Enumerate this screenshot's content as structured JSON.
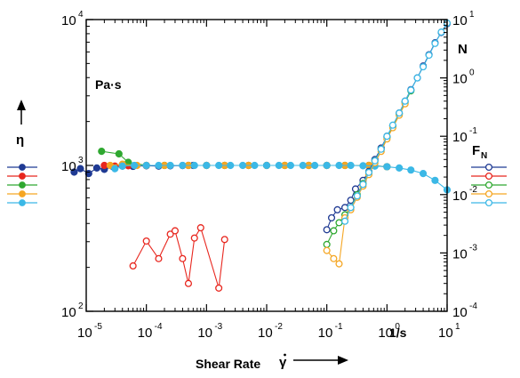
{
  "chart_data": {
    "type": "line",
    "x_scale": "log",
    "y_left_scale": "log",
    "y_right_scale": "log",
    "xlim": [
      1e-05,
      10
    ],
    "ylim_left": [
      100,
      10000
    ],
    "ylim_right": [
      0.0001,
      10
    ],
    "x_ticks": [
      "10^-5",
      "10^-4",
      "10^-3",
      "10^-2",
      "10^-1",
      "10^0",
      "10^1"
    ],
    "y_left_ticks": [
      "10^2",
      "10^3",
      "10^4"
    ],
    "y_right_ticks": [
      "10^-4",
      "10^-3",
      "10^-2",
      "10^-1",
      "10^0",
      "10^1"
    ],
    "xlabel": "Shear Rate γ̇",
    "x_unit": "1/s",
    "ylabel_left": "η",
    "ylabel_left_unit": "Pa·s",
    "ylabel_right": "N",
    "legend_left_title": "η",
    "legend_right_title": "F_N",
    "colors": [
      "#1f3a93",
      "#e8261e",
      "#2fa830",
      "#f5a623",
      "#3bb8e6"
    ],
    "eta_series": [
      {
        "color": "#1f3a93",
        "points": [
          [
            6.3e-06,
            900
          ],
          [
            8e-06,
            950
          ],
          [
            1.1e-05,
            880
          ],
          [
            1.5e-05,
            960
          ],
          [
            2e-05,
            940
          ],
          [
            2.8e-05,
            980
          ],
          [
            4e-05,
            990
          ],
          [
            6e-05,
            985
          ],
          [
            0.0001,
            995
          ],
          [
            0.00016,
            990
          ],
          [
            0.00025,
            995
          ],
          [
            0.0004,
            998
          ],
          [
            0.0006,
            1000
          ]
        ]
      },
      {
        "color": "#e8261e",
        "points": [
          [
            2e-05,
            1000
          ],
          [
            3e-05,
            990
          ],
          [
            5e-05,
            995
          ],
          [
            0.0001,
            1000
          ],
          [
            0.0002,
            1000
          ],
          [
            0.0005,
            1000
          ],
          [
            0.001,
            1000
          ],
          [
            0.002,
            1000
          ],
          [
            0.005,
            1000
          ],
          [
            0.01,
            1000
          ],
          [
            0.02,
            1000
          ],
          [
            0.05,
            1000
          ],
          [
            0.1,
            1000
          ],
          [
            0.2,
            1000
          ],
          [
            0.5,
            1000
          ],
          [
            1,
            980
          ]
        ]
      },
      {
        "color": "#2fa830",
        "points": [
          [
            1.8e-05,
            1250
          ],
          [
            3.5e-05,
            1200
          ],
          [
            5e-05,
            1050
          ],
          [
            0.0001,
            1000
          ],
          [
            0.0002,
            1000
          ],
          [
            0.0005,
            1000
          ],
          [
            0.001,
            1000
          ],
          [
            0.002,
            1000
          ],
          [
            0.005,
            1000
          ],
          [
            0.01,
            1000
          ],
          [
            0.02,
            1000
          ],
          [
            0.05,
            1000
          ],
          [
            0.1,
            1000
          ],
          [
            0.2,
            1000
          ],
          [
            0.5,
            1000
          ],
          [
            1,
            980
          ]
        ]
      },
      {
        "color": "#f5a623",
        "points": [
          [
            2.5e-05,
            1000
          ],
          [
            4e-05,
            1020
          ],
          [
            7e-05,
            1000
          ],
          [
            0.0001,
            1000
          ],
          [
            0.0002,
            1000
          ],
          [
            0.0005,
            1000
          ],
          [
            0.001,
            1000
          ],
          [
            0.002,
            1000
          ],
          [
            0.005,
            1000
          ],
          [
            0.01,
            1000
          ],
          [
            0.02,
            1000
          ],
          [
            0.05,
            1000
          ],
          [
            0.1,
            1000
          ],
          [
            0.2,
            1000
          ],
          [
            0.5,
            1000
          ],
          [
            1,
            980
          ]
        ]
      },
      {
        "color": "#3bb8e6",
        "points": [
          [
            3e-05,
            950
          ],
          [
            4e-05,
            990
          ],
          [
            6.3e-05,
            1000
          ],
          [
            0.0001,
            1000
          ],
          [
            0.00016,
            1000
          ],
          [
            0.00025,
            1000
          ],
          [
            0.0004,
            1000
          ],
          [
            0.00063,
            1000
          ],
          [
            0.001,
            1000
          ],
          [
            0.0016,
            1000
          ],
          [
            0.0025,
            1000
          ],
          [
            0.004,
            1000
          ],
          [
            0.0063,
            1000
          ],
          [
            0.01,
            1000
          ],
          [
            0.016,
            1000
          ],
          [
            0.025,
            1000
          ],
          [
            0.04,
            1000
          ],
          [
            0.063,
            1000
          ],
          [
            0.1,
            1000
          ],
          [
            0.16,
            1000
          ],
          [
            0.25,
            1000
          ],
          [
            0.4,
            995
          ],
          [
            0.63,
            990
          ],
          [
            1,
            980
          ],
          [
            1.6,
            960
          ],
          [
            2.5,
            930
          ],
          [
            4,
            880
          ],
          [
            6.3,
            790
          ],
          [
            10,
            680
          ]
        ]
      }
    ],
    "fn_series": [
      {
        "color": "#e8261e",
        "points": [
          [
            6e-05,
            0.0006
          ],
          [
            0.0001,
            0.0016
          ],
          [
            0.00016,
            0.0008
          ],
          [
            0.00025,
            0.0021
          ],
          [
            0.0003,
            0.0024
          ],
          [
            0.0004,
            0.0008
          ],
          [
            0.0005,
            0.0003
          ],
          [
            0.00063,
            0.0018
          ],
          [
            0.0008,
            0.0027
          ],
          [
            0.0016,
            0.00025
          ],
          [
            0.002,
            0.0017
          ]
        ]
      },
      {
        "color": "#1f3a93",
        "points": [
          [
            0.1,
            0.0025
          ],
          [
            0.12,
            0.004
          ],
          [
            0.15,
            0.0055
          ],
          [
            0.2,
            0.006
          ],
          [
            0.25,
            0.008
          ],
          [
            0.3,
            0.0125
          ],
          [
            0.4,
            0.0175
          ],
          [
            0.5,
            0.025
          ],
          [
            0.63,
            0.04
          ],
          [
            0.8,
            0.063
          ],
          [
            1,
            0.1
          ],
          [
            1.25,
            0.15
          ],
          [
            1.6,
            0.25
          ],
          [
            2,
            0.4
          ],
          [
            2.5,
            0.63
          ],
          [
            3.2,
            1.0
          ],
          [
            4,
            1.6
          ],
          [
            5,
            2.5
          ],
          [
            6.3,
            4
          ],
          [
            8,
            6
          ],
          [
            10,
            8.5
          ]
        ]
      },
      {
        "color": "#2fa830",
        "points": [
          [
            0.1,
            0.0014
          ],
          [
            0.13,
            0.0024
          ],
          [
            0.16,
            0.0033
          ],
          [
            0.2,
            0.0045
          ],
          [
            0.25,
            0.006
          ],
          [
            0.32,
            0.01
          ],
          [
            0.4,
            0.0155
          ],
          [
            0.5,
            0.024
          ],
          [
            0.63,
            0.038
          ],
          [
            0.8,
            0.06
          ],
          [
            1,
            0.095
          ],
          [
            1.25,
            0.15
          ],
          [
            1.6,
            0.24
          ],
          [
            2,
            0.38
          ],
          [
            2.5,
            0.6
          ]
        ]
      },
      {
        "color": "#f5a623",
        "points": [
          [
            0.1,
            0.0011
          ],
          [
            0.13,
            0.0008
          ],
          [
            0.16,
            0.00065
          ],
          [
            0.2,
            0.004
          ],
          [
            0.25,
            0.0055
          ],
          [
            0.32,
            0.009
          ],
          [
            0.4,
            0.014
          ],
          [
            0.5,
            0.022
          ],
          [
            0.63,
            0.035
          ],
          [
            0.8,
            0.055
          ],
          [
            1,
            0.09
          ],
          [
            1.25,
            0.14
          ],
          [
            1.6,
            0.23
          ],
          [
            2,
            0.36
          ]
        ]
      },
      {
        "color": "#3bb8e6",
        "points": [
          [
            0.2,
            0.0035
          ],
          [
            0.25,
            0.006
          ],
          [
            0.32,
            0.0095
          ],
          [
            0.4,
            0.015
          ],
          [
            0.5,
            0.024
          ],
          [
            0.63,
            0.038
          ],
          [
            0.8,
            0.06
          ],
          [
            1,
            0.1
          ],
          [
            1.25,
            0.155
          ],
          [
            1.6,
            0.25
          ],
          [
            2,
            0.4
          ],
          [
            2.5,
            0.62
          ],
          [
            3.2,
            1.0
          ],
          [
            4,
            1.55
          ],
          [
            5,
            2.45
          ],
          [
            6.3,
            3.9
          ],
          [
            8,
            6.1
          ],
          [
            10,
            8.7
          ]
        ]
      }
    ]
  }
}
